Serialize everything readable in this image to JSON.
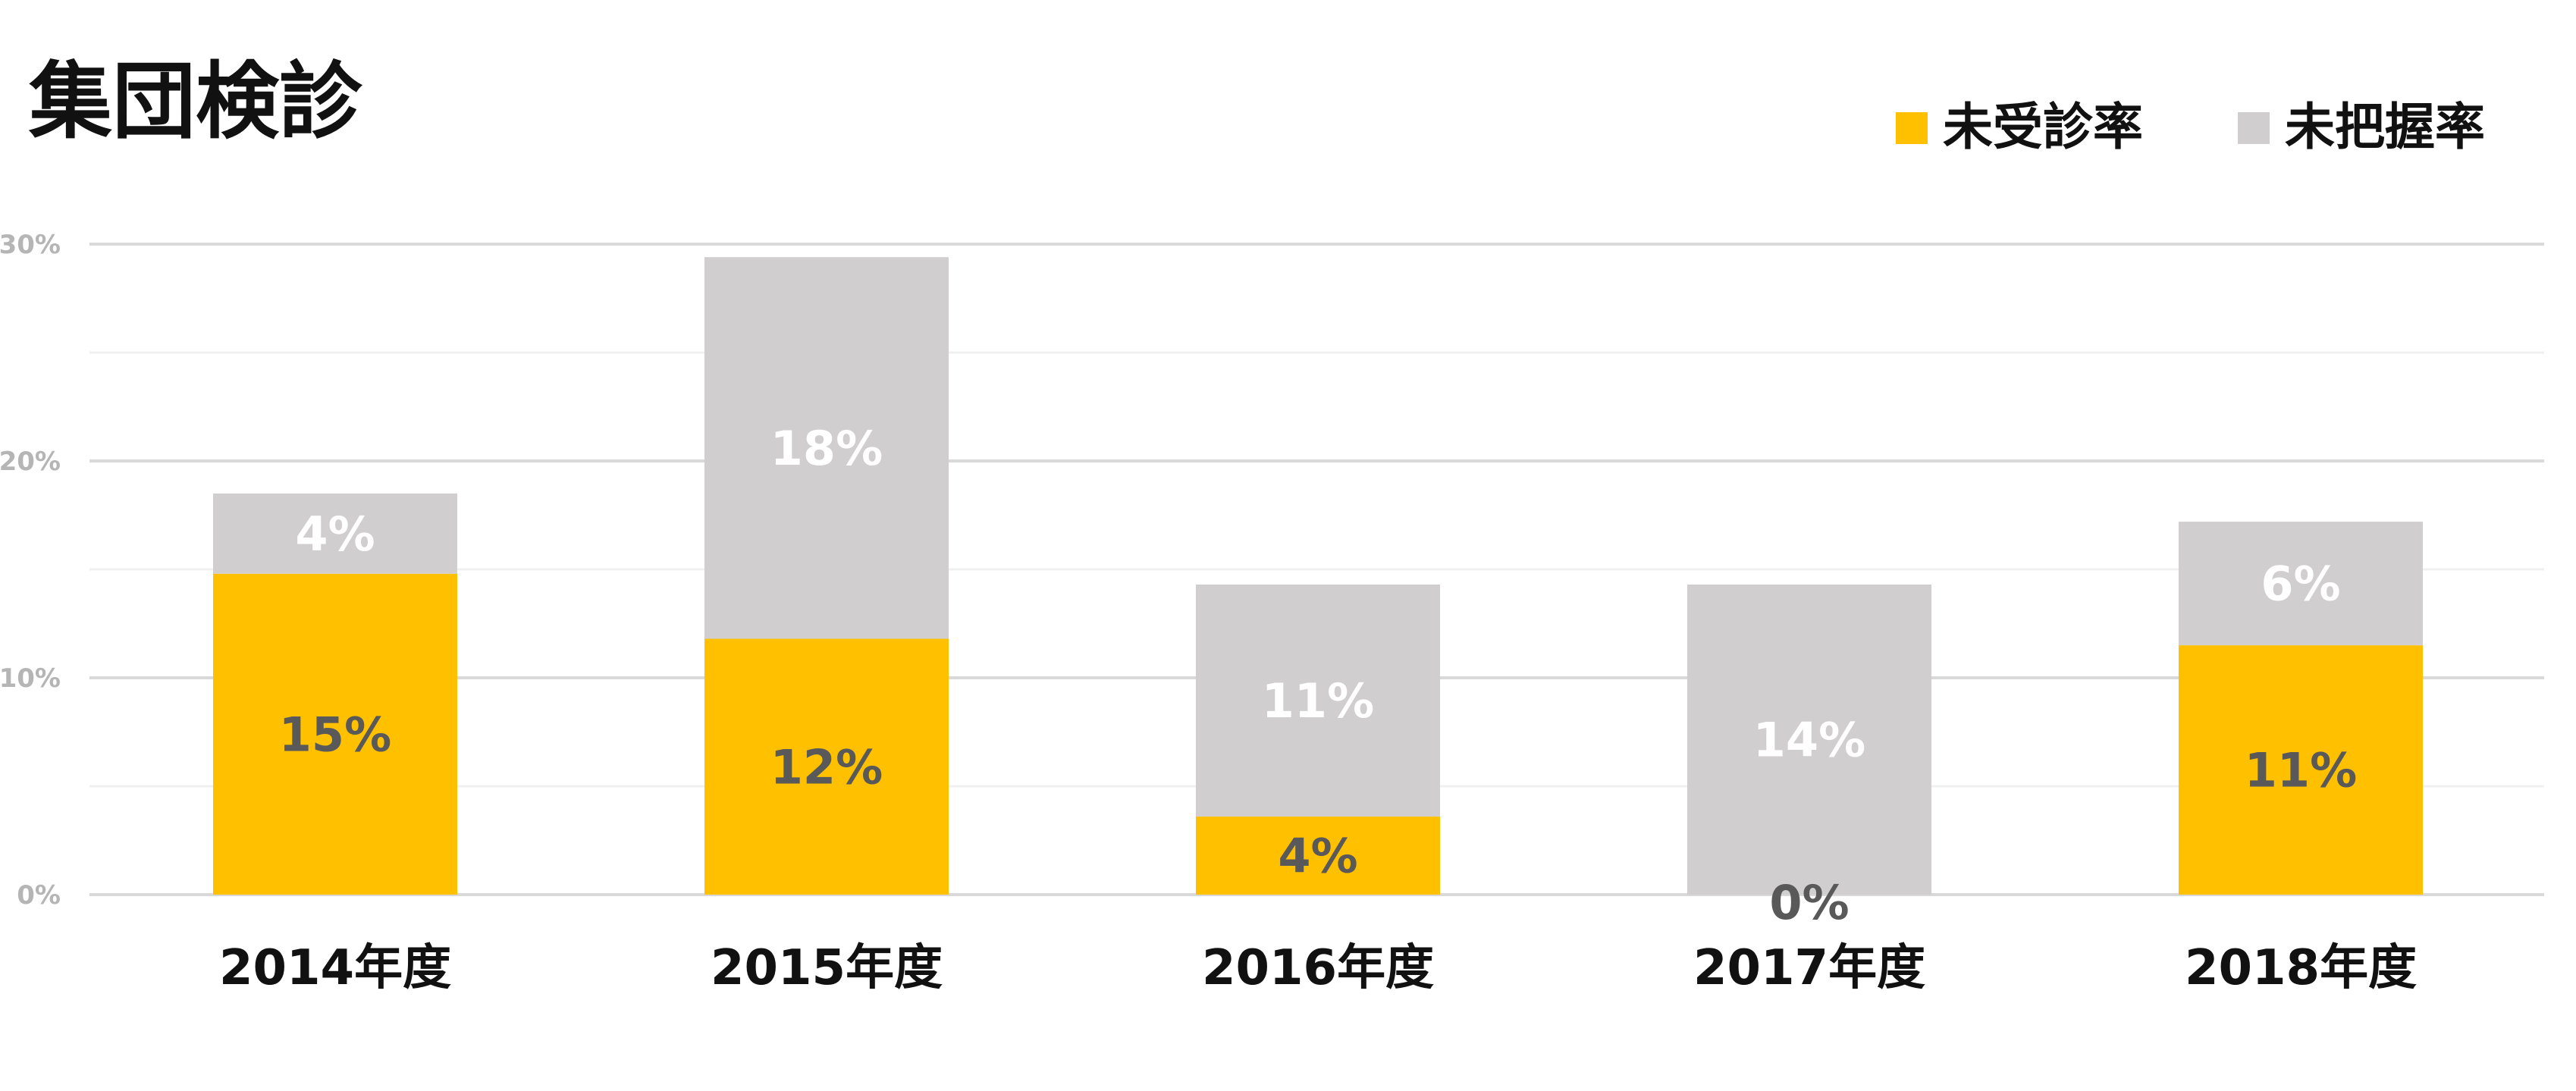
{
  "chart_data": {
    "type": "bar",
    "stacked": true,
    "title": "集団検診",
    "xlabel": "",
    "ylabel": "",
    "categories": [
      "2014年度",
      "2015年度",
      "2016年度",
      "2017年度",
      "2018年度"
    ],
    "series": [
      {
        "name": "未受診率",
        "color": "#ffc000",
        "values": [
          14.8,
          11.8,
          3.6,
          0.0,
          11.5
        ],
        "labels": [
          "15%",
          "12%",
          "4%",
          "0%",
          "11%"
        ]
      },
      {
        "name": "未把握率",
        "color": "#d0cece",
        "values": [
          3.7,
          17.6,
          10.7,
          14.3,
          5.7
        ],
        "labels": [
          "4%",
          "18%",
          "11%",
          "14%",
          "6%"
        ]
      }
    ],
    "ylim": [
      0,
      30
    ],
    "yticks": [
      {
        "value": 0,
        "label": "0%"
      },
      {
        "value": 10,
        "label": "10%"
      },
      {
        "value": 20,
        "label": "20%"
      },
      {
        "value": 30,
        "label": "30%"
      }
    ],
    "minor_gridlines": [
      5,
      15,
      25
    ],
    "grid": true,
    "legend_position": "top-right",
    "gridline_color": "#d9d9d9"
  }
}
